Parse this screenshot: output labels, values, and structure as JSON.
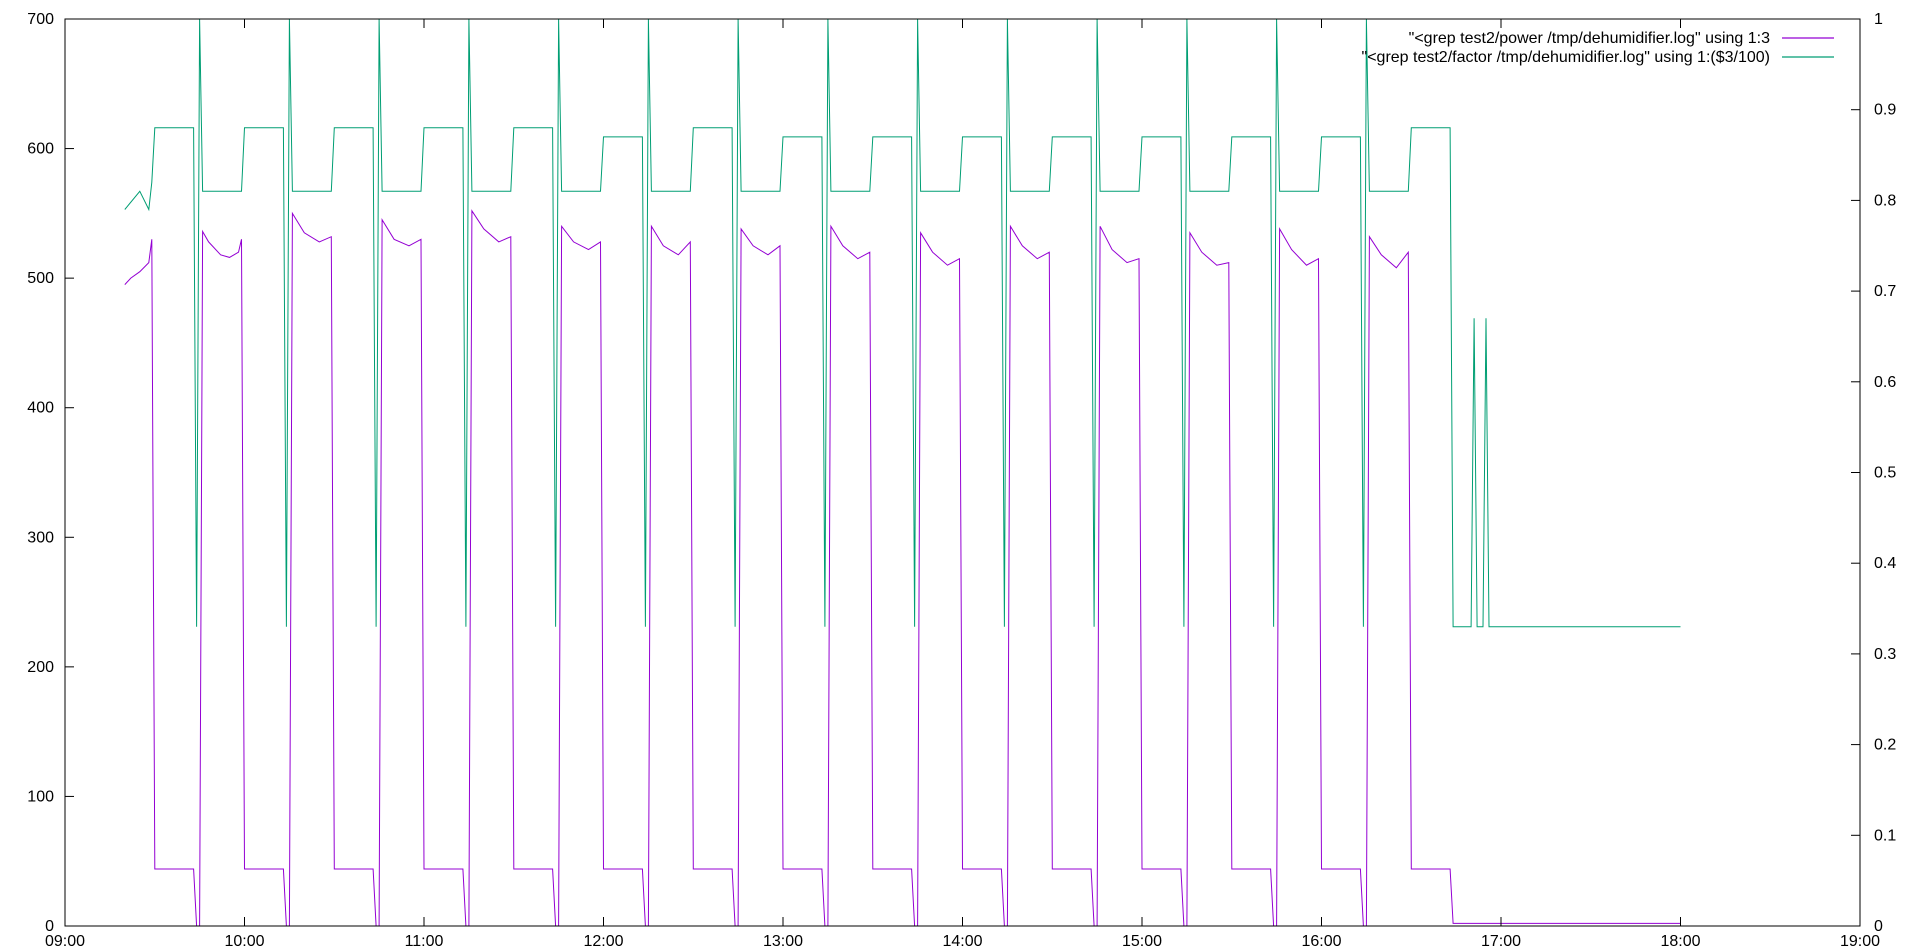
{
  "chart_data": {
    "type": "line",
    "title": "",
    "xlabel": "",
    "ylabel": "",
    "y2label": "",
    "x_ticks": [
      "09:00",
      "10:00",
      "11:00",
      "12:00",
      "13:00",
      "14:00",
      "15:00",
      "16:00",
      "17:00",
      "18:00",
      "19:00"
    ],
    "y_ticks": [
      "0",
      "100",
      "200",
      "300",
      "400",
      "500",
      "600",
      "700"
    ],
    "y2_ticks": [
      "0",
      "0.1",
      "0.2",
      "0.3",
      "0.4",
      "0.5",
      "0.6",
      "0.7",
      "0.8",
      "0.9",
      "1"
    ],
    "xlim": [
      "09:00",
      "19:00"
    ],
    "ylim": [
      0,
      700
    ],
    "y2lim": [
      0,
      1
    ],
    "grid": false,
    "legend_position": "top-right",
    "series": [
      {
        "name": "\"<grep test2/power /tmp/dehumidifier.log\" using 1:3",
        "axis": "left",
        "color": "#9400d3",
        "points": [
          [
            "09:20",
            495
          ],
          [
            "09:22",
            500
          ],
          [
            "09:25",
            505
          ],
          [
            "09:28",
            512
          ],
          [
            "09:29",
            530
          ],
          [
            "09:30",
            44
          ],
          [
            "09:43",
            44
          ],
          [
            "09:44",
            0
          ],
          [
            "09:45",
            0
          ],
          [
            "09:46",
            536
          ],
          [
            "09:48",
            528
          ],
          [
            "09:52",
            518
          ],
          [
            "09:55",
            516
          ],
          [
            "09:58",
            520
          ],
          [
            "09:59",
            530
          ],
          [
            "10:00",
            44
          ],
          [
            "10:13",
            44
          ],
          [
            "10:14",
            0
          ],
          [
            "10:15",
            0
          ],
          [
            "10:16",
            550
          ],
          [
            "10:20",
            535
          ],
          [
            "10:25",
            528
          ],
          [
            "10:29",
            532
          ],
          [
            "10:30",
            44
          ],
          [
            "10:43",
            44
          ],
          [
            "10:44",
            0
          ],
          [
            "10:45",
            0
          ],
          [
            "10:46",
            545
          ],
          [
            "10:50",
            530
          ],
          [
            "10:55",
            525
          ],
          [
            "10:59",
            530
          ],
          [
            "11:00",
            44
          ],
          [
            "11:13",
            44
          ],
          [
            "11:14",
            0
          ],
          [
            "11:15",
            0
          ],
          [
            "11:16",
            552
          ],
          [
            "11:20",
            538
          ],
          [
            "11:25",
            528
          ],
          [
            "11:29",
            532
          ],
          [
            "11:30",
            44
          ],
          [
            "11:43",
            44
          ],
          [
            "11:44",
            0
          ],
          [
            "11:45",
            0
          ],
          [
            "11:46",
            540
          ],
          [
            "11:50",
            528
          ],
          [
            "11:55",
            522
          ],
          [
            "11:59",
            528
          ],
          [
            "12:00",
            44
          ],
          [
            "12:13",
            44
          ],
          [
            "12:14",
            0
          ],
          [
            "12:15",
            0
          ],
          [
            "12:16",
            540
          ],
          [
            "12:20",
            525
          ],
          [
            "12:25",
            518
          ],
          [
            "12:29",
            528
          ],
          [
            "12:30",
            44
          ],
          [
            "12:43",
            44
          ],
          [
            "12:44",
            0
          ],
          [
            "12:45",
            0
          ],
          [
            "12:46",
            538
          ],
          [
            "12:50",
            525
          ],
          [
            "12:55",
            518
          ],
          [
            "12:59",
            525
          ],
          [
            "13:00",
            44
          ],
          [
            "13:13",
            44
          ],
          [
            "13:14",
            0
          ],
          [
            "13:15",
            0
          ],
          [
            "13:16",
            540
          ],
          [
            "13:20",
            525
          ],
          [
            "13:25",
            515
          ],
          [
            "13:29",
            520
          ],
          [
            "13:30",
            44
          ],
          [
            "13:43",
            44
          ],
          [
            "13:44",
            0
          ],
          [
            "13:45",
            0
          ],
          [
            "13:46",
            535
          ],
          [
            "13:50",
            520
          ],
          [
            "13:55",
            510
          ],
          [
            "13:59",
            515
          ],
          [
            "14:00",
            44
          ],
          [
            "14:13",
            44
          ],
          [
            "14:14",
            0
          ],
          [
            "14:15",
            0
          ],
          [
            "14:16",
            540
          ],
          [
            "14:20",
            525
          ],
          [
            "14:25",
            515
          ],
          [
            "14:29",
            520
          ],
          [
            "14:30",
            44
          ],
          [
            "14:43",
            44
          ],
          [
            "14:44",
            0
          ],
          [
            "14:45",
            0
          ],
          [
            "14:46",
            540
          ],
          [
            "14:50",
            522
          ],
          [
            "14:55",
            512
          ],
          [
            "14:59",
            515
          ],
          [
            "15:00",
            44
          ],
          [
            "15:13",
            44
          ],
          [
            "15:14",
            0
          ],
          [
            "15:15",
            0
          ],
          [
            "15:16",
            535
          ],
          [
            "15:20",
            520
          ],
          [
            "15:25",
            510
          ],
          [
            "15:29",
            512
          ],
          [
            "15:30",
            44
          ],
          [
            "15:43",
            44
          ],
          [
            "15:44",
            0
          ],
          [
            "15:45",
            0
          ],
          [
            "15:46",
            538
          ],
          [
            "15:50",
            522
          ],
          [
            "15:55",
            510
          ],
          [
            "15:59",
            515
          ],
          [
            "16:00",
            44
          ],
          [
            "16:13",
            44
          ],
          [
            "16:14",
            0
          ],
          [
            "16:15",
            0
          ],
          [
            "16:16",
            532
          ],
          [
            "16:20",
            518
          ],
          [
            "16:25",
            508
          ],
          [
            "16:29",
            520
          ],
          [
            "16:30",
            44
          ],
          [
            "16:43",
            44
          ],
          [
            "16:44",
            2
          ],
          [
            "18:00",
            2
          ]
        ]
      },
      {
        "name": "\"<grep test2/factor /tmp/dehumidifier.log\" using 1:($3/100)",
        "axis": "right",
        "color": "#009e73",
        "points": [
          [
            "09:20",
            0.79
          ],
          [
            "09:25",
            0.81
          ],
          [
            "09:28",
            0.79
          ],
          [
            "09:29",
            0.82
          ],
          [
            "09:30",
            0.88
          ],
          [
            "09:43",
            0.88
          ],
          [
            "09:44",
            0.33
          ],
          [
            "09:45",
            1.0
          ],
          [
            "09:46",
            0.81
          ],
          [
            "09:55",
            0.81
          ],
          [
            "09:59",
            0.81
          ],
          [
            "10:00",
            0.88
          ],
          [
            "10:13",
            0.88
          ],
          [
            "10:14",
            0.33
          ],
          [
            "10:15",
            1.0
          ],
          [
            "10:16",
            0.81
          ],
          [
            "10:29",
            0.81
          ],
          [
            "10:30",
            0.88
          ],
          [
            "10:43",
            0.88
          ],
          [
            "10:44",
            0.33
          ],
          [
            "10:45",
            1.0
          ],
          [
            "10:46",
            0.81
          ],
          [
            "10:59",
            0.81
          ],
          [
            "11:00",
            0.88
          ],
          [
            "11:13",
            0.88
          ],
          [
            "11:14",
            0.33
          ],
          [
            "11:15",
            1.0
          ],
          [
            "11:16",
            0.81
          ],
          [
            "11:29",
            0.81
          ],
          [
            "11:30",
            0.88
          ],
          [
            "11:43",
            0.88
          ],
          [
            "11:44",
            0.33
          ],
          [
            "11:45",
            1.0
          ],
          [
            "11:46",
            0.81
          ],
          [
            "11:59",
            0.81
          ],
          [
            "12:00",
            0.87
          ],
          [
            "12:13",
            0.87
          ],
          [
            "12:14",
            0.33
          ],
          [
            "12:15",
            1.0
          ],
          [
            "12:16",
            0.81
          ],
          [
            "12:29",
            0.81
          ],
          [
            "12:30",
            0.88
          ],
          [
            "12:43",
            0.88
          ],
          [
            "12:44",
            0.33
          ],
          [
            "12:45",
            1.0
          ],
          [
            "12:46",
            0.81
          ],
          [
            "12:59",
            0.81
          ],
          [
            "13:00",
            0.87
          ],
          [
            "13:13",
            0.87
          ],
          [
            "13:14",
            0.33
          ],
          [
            "13:15",
            1.0
          ],
          [
            "13:16",
            0.81
          ],
          [
            "13:29",
            0.81
          ],
          [
            "13:30",
            0.87
          ],
          [
            "13:43",
            0.87
          ],
          [
            "13:44",
            0.33
          ],
          [
            "13:45",
            1.0
          ],
          [
            "13:46",
            0.81
          ],
          [
            "13:59",
            0.81
          ],
          [
            "14:00",
            0.87
          ],
          [
            "14:13",
            0.87
          ],
          [
            "14:14",
            0.33
          ],
          [
            "14:15",
            1.0
          ],
          [
            "14:16",
            0.81
          ],
          [
            "14:29",
            0.81
          ],
          [
            "14:30",
            0.87
          ],
          [
            "14:43",
            0.87
          ],
          [
            "14:44",
            0.33
          ],
          [
            "14:45",
            1.0
          ],
          [
            "14:46",
            0.81
          ],
          [
            "14:59",
            0.81
          ],
          [
            "15:00",
            0.87
          ],
          [
            "15:13",
            0.87
          ],
          [
            "15:14",
            0.33
          ],
          [
            "15:15",
            1.0
          ],
          [
            "15:16",
            0.81
          ],
          [
            "15:29",
            0.81
          ],
          [
            "15:30",
            0.87
          ],
          [
            "15:43",
            0.87
          ],
          [
            "15:44",
            0.33
          ],
          [
            "15:45",
            1.0
          ],
          [
            "15:46",
            0.81
          ],
          [
            "15:59",
            0.81
          ],
          [
            "16:00",
            0.87
          ],
          [
            "16:13",
            0.87
          ],
          [
            "16:14",
            0.33
          ],
          [
            "16:15",
            1.0
          ],
          [
            "16:16",
            0.81
          ],
          [
            "16:29",
            0.81
          ],
          [
            "16:30",
            0.88
          ],
          [
            "16:43",
            0.88
          ],
          [
            "16:44",
            0.33
          ],
          [
            "16:50",
            0.33
          ],
          [
            "16:51",
            0.67
          ],
          [
            "16:52",
            0.33
          ],
          [
            "16:54",
            0.33
          ],
          [
            "16:55",
            0.67
          ],
          [
            "16:56",
            0.33
          ],
          [
            "18:00",
            0.33
          ]
        ]
      }
    ]
  }
}
